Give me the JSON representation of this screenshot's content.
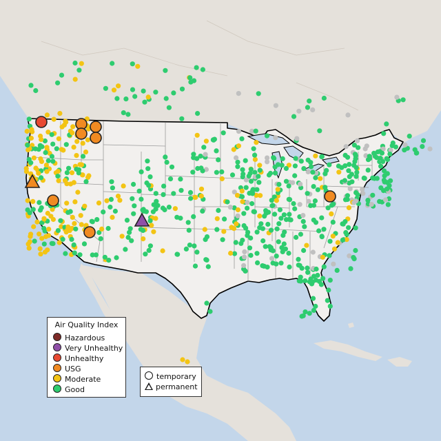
{
  "map": {
    "legend_aqi": {
      "title": "Air Quality Index",
      "items": [
        {
          "label": "Hazardous",
          "color": "#7e2b28"
        },
        {
          "label": "Very Unhealthy",
          "color": "#8f4fa8"
        },
        {
          "label": "Unhealthy",
          "color": "#e84a32"
        },
        {
          "label": "USG",
          "color": "#f08a22"
        },
        {
          "label": "Moderate",
          "color": "#f3c414"
        },
        {
          "label": "Good",
          "color": "#2ecc6f"
        }
      ]
    },
    "legend_type": {
      "items": [
        {
          "label": "temporary",
          "shape": "circle"
        },
        {
          "label": "permanent",
          "shape": "triangle"
        }
      ]
    },
    "colors": {
      "water": "#c3d6ea",
      "land": "#e5e1db",
      "us_land": "#f2f0ee",
      "border": "#000000",
      "state_lines": "#9a9a9a",
      "offline": "#c0c0c0"
    }
  }
}
